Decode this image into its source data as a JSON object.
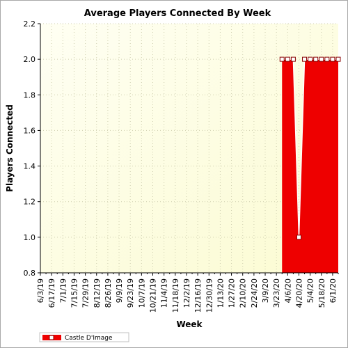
{
  "chart_data": {
    "type": "area",
    "title": "Average Players Connected By Week",
    "xlabel": "Week",
    "ylabel": "Players Connected",
    "ylim": [
      0.8,
      2.2
    ],
    "yticks": [
      "0.8",
      "1.0",
      "1.2",
      "1.4",
      "1.6",
      "1.8",
      "2.0",
      "2.2"
    ],
    "x_tick_labels": [
      "6/3/19",
      "6/17/19",
      "7/1/19",
      "7/15/19",
      "7/29/19",
      "8/12/19",
      "8/26/19",
      "9/9/19",
      "9/23/19",
      "10/7/19",
      "10/21/19",
      "11/4/19",
      "11/18/19",
      "12/2/19",
      "12/16/19",
      "12/30/19",
      "1/13/20",
      "1/27/20",
      "2/10/20",
      "2/24/20",
      "3/9/20",
      "3/23/20",
      "4/6/20",
      "4/20/20",
      "5/4/20",
      "5/18/20",
      "6/1/20"
    ],
    "week_count": 54,
    "grid": true,
    "legend_position": "bottom-left",
    "series": [
      {
        "name": "Castle D'Image",
        "color": "#ee0000",
        "x": [
          "3/30/20",
          "4/6/20",
          "4/13/20",
          "4/20/20",
          "4/27/20",
          "5/4/20",
          "5/11/20",
          "5/18/20",
          "5/25/20",
          "6/1/20",
          "6/8/20"
        ],
        "values": [
          2.0,
          2.0,
          2.0,
          1.0,
          2.0,
          2.0,
          2.0,
          2.0,
          2.0,
          2.0,
          2.0
        ],
        "start_index": 43
      }
    ]
  }
}
